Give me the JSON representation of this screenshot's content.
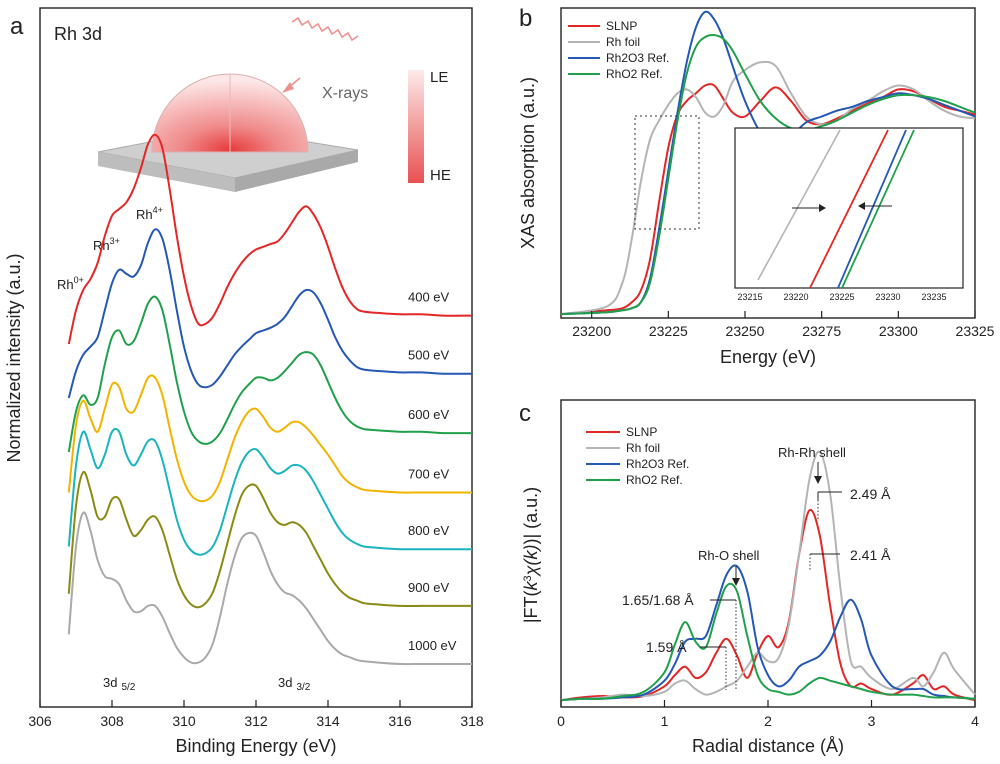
{
  "panels": {
    "a": {
      "letter": "a",
      "label": "Rh 3d",
      "inset": {
        "xray_label": "X-rays",
        "le_label": "LE",
        "he_label": "HE"
      },
      "peak_labels": {
        "rh0": "Rh",
        "rh0_sup": "0+",
        "rh3": "Rh",
        "rh3_sup": "3+",
        "rh4": "Rh",
        "rh4_sup": "4+"
      },
      "region_labels": {
        "d52": "3d",
        "d52_sub": "5/2",
        "d32": "3d",
        "d32_sub": "3/2"
      }
    },
    "b": {
      "letter": "b",
      "inset_ticks": [
        "23215",
        "23220",
        "23225",
        "23230",
        "23235"
      ]
    },
    "c": {
      "letter": "c",
      "annotations": {
        "rhrh_shell": "Rh-Rh shell",
        "rho_shell": "Rh-O shell",
        "v249": "2.49 Å",
        "v241": "2.41 Å",
        "v165": "1.65/1.68 Å",
        "v159": "1.59 Å"
      }
    }
  },
  "chart_data": [
    {
      "type": "line",
      "panel": "a",
      "title": "Rh 3d",
      "xlabel": "Binding Energy (eV)",
      "ylabel": "Normalized intensity (a.u.)",
      "xlim": [
        306,
        318
      ],
      "x_ticks": [
        306,
        308,
        310,
        312,
        314,
        316,
        318
      ],
      "x": [
        306.8,
        307.0,
        307.2,
        307.4,
        307.6,
        307.8,
        308.0,
        308.2,
        308.4,
        308.6,
        308.8,
        309.0,
        309.2,
        309.4,
        309.6,
        309.8,
        310.0,
        310.2,
        310.4,
        310.6,
        310.8,
        311.0,
        311.2,
        311.4,
        311.6,
        311.8,
        312.0,
        312.2,
        312.4,
        312.6,
        312.8,
        313.0,
        313.2,
        313.4,
        313.6,
        313.8,
        314.0,
        314.2,
        314.4,
        314.6,
        314.8,
        315.0,
        315.4,
        316.0,
        316.6,
        317.2,
        318.0
      ],
      "series": [
        {
          "name": "400 eV",
          "color": "#e32626",
          "offset": 6,
          "values": [
            0.0,
            0.25,
            0.4,
            0.48,
            0.6,
            0.8,
            0.95,
            1.0,
            1.05,
            1.15,
            1.3,
            1.48,
            1.55,
            1.45,
            1.15,
            0.8,
            0.5,
            0.28,
            0.15,
            0.15,
            0.2,
            0.3,
            0.42,
            0.52,
            0.6,
            0.66,
            0.7,
            0.72,
            0.74,
            0.76,
            0.82,
            0.9,
            0.98,
            1.02,
            0.96,
            0.86,
            0.72,
            0.56,
            0.42,
            0.32,
            0.26,
            0.24,
            0.23,
            0.22,
            0.22,
            0.21,
            0.21
          ]
        },
        {
          "name": "500 eV",
          "color": "#2458b4",
          "offset": 5,
          "values": [
            0.0,
            0.2,
            0.32,
            0.38,
            0.45,
            0.65,
            0.85,
            0.95,
            0.92,
            0.9,
            0.98,
            1.15,
            1.25,
            1.18,
            0.95,
            0.65,
            0.38,
            0.2,
            0.1,
            0.08,
            0.1,
            0.16,
            0.24,
            0.32,
            0.38,
            0.43,
            0.48,
            0.5,
            0.52,
            0.55,
            0.6,
            0.68,
            0.76,
            0.8,
            0.78,
            0.7,
            0.58,
            0.45,
            0.35,
            0.28,
            0.23,
            0.21,
            0.2,
            0.19,
            0.19,
            0.18,
            0.18
          ]
        },
        {
          "name": "600 eV",
          "color": "#20a04a",
          "offset": 4,
          "values": [
            0.0,
            0.3,
            0.42,
            0.35,
            0.4,
            0.65,
            0.85,
            0.9,
            0.8,
            0.82,
            0.95,
            1.1,
            1.15,
            1.05,
            0.8,
            0.52,
            0.3,
            0.15,
            0.08,
            0.06,
            0.08,
            0.14,
            0.24,
            0.35,
            0.44,
            0.5,
            0.55,
            0.55,
            0.53,
            0.55,
            0.6,
            0.66,
            0.72,
            0.74,
            0.72,
            0.64,
            0.52,
            0.4,
            0.3,
            0.23,
            0.19,
            0.17,
            0.16,
            0.15,
            0.15,
            0.14,
            0.14
          ]
        },
        {
          "name": "700 eV",
          "color": "#f0b400",
          "offset": 3,
          "values": [
            0.1,
            0.6,
            0.78,
            0.65,
            0.55,
            0.72,
            0.9,
            0.88,
            0.72,
            0.7,
            0.82,
            0.95,
            0.95,
            0.82,
            0.58,
            0.35,
            0.18,
            0.08,
            0.04,
            0.04,
            0.08,
            0.18,
            0.34,
            0.5,
            0.62,
            0.7,
            0.72,
            0.66,
            0.58,
            0.55,
            0.58,
            0.62,
            0.62,
            0.58,
            0.52,
            0.45,
            0.38,
            0.3,
            0.22,
            0.17,
            0.14,
            0.12,
            0.11,
            0.1,
            0.1,
            0.1,
            0.1
          ]
        },
        {
          "name": "800 eV",
          "color": "#1ab4be",
          "offset": 2,
          "values": [
            0.1,
            0.7,
            0.95,
            0.82,
            0.68,
            0.78,
            0.95,
            0.95,
            0.78,
            0.7,
            0.78,
            0.88,
            0.88,
            0.74,
            0.52,
            0.3,
            0.15,
            0.07,
            0.04,
            0.05,
            0.1,
            0.22,
            0.4,
            0.58,
            0.72,
            0.8,
            0.82,
            0.76,
            0.68,
            0.64,
            0.66,
            0.7,
            0.7,
            0.66,
            0.58,
            0.48,
            0.38,
            0.28,
            0.2,
            0.15,
            0.12,
            0.1,
            0.09,
            0.08,
            0.08,
            0.08,
            0.08
          ]
        },
        {
          "name": "900 eV",
          "color": "#8a8a14",
          "offset": 1,
          "values": [
            0.15,
            0.8,
            1.05,
            0.92,
            0.72,
            0.72,
            0.85,
            0.85,
            0.7,
            0.58,
            0.62,
            0.7,
            0.72,
            0.62,
            0.44,
            0.26,
            0.14,
            0.07,
            0.05,
            0.08,
            0.16,
            0.32,
            0.52,
            0.72,
            0.88,
            0.95,
            0.95,
            0.86,
            0.75,
            0.68,
            0.66,
            0.68,
            0.66,
            0.6,
            0.5,
            0.4,
            0.3,
            0.22,
            0.16,
            0.12,
            0.1,
            0.08,
            0.07,
            0.06,
            0.06,
            0.06,
            0.06
          ]
        },
        {
          "name": "1000 eV",
          "color": "#a9a9a9",
          "offset": 0,
          "values": [
            0.25,
            0.9,
            1.15,
            1.02,
            0.8,
            0.68,
            0.66,
            0.62,
            0.5,
            0.42,
            0.42,
            0.46,
            0.46,
            0.38,
            0.26,
            0.15,
            0.08,
            0.04,
            0.04,
            0.08,
            0.18,
            0.38,
            0.62,
            0.82,
            0.96,
            1.0,
            0.98,
            0.86,
            0.72,
            0.62,
            0.56,
            0.54,
            0.5,
            0.44,
            0.36,
            0.28,
            0.2,
            0.14,
            0.1,
            0.08,
            0.06,
            0.05,
            0.04,
            0.03,
            0.03,
            0.03,
            0.03
          ]
        }
      ]
    },
    {
      "type": "line",
      "panel": "b",
      "xlabel": "Energy (eV)",
      "ylabel": "XAS absorption (a.u.)",
      "xlim": [
        23190,
        23325
      ],
      "ylim": [
        0,
        1.6
      ],
      "x_ticks": [
        23200,
        23225,
        23250,
        23275,
        23300,
        23325
      ],
      "legend": "top-left",
      "x": [
        23190,
        23205,
        23210,
        23213,
        23216,
        23219,
        23222,
        23225,
        23228,
        23231,
        23234,
        23237,
        23240,
        23243,
        23246,
        23250,
        23255,
        23260,
        23265,
        23270,
        23275,
        23280,
        23285,
        23290,
        23295,
        23300,
        23305,
        23310,
        23315,
        23320,
        23325
      ],
      "series": [
        {
          "name": "SLNP",
          "color": "#e32626",
          "values": [
            0.02,
            0.04,
            0.05,
            0.08,
            0.14,
            0.3,
            0.6,
            0.88,
            1.05,
            1.12,
            1.16,
            1.2,
            1.2,
            1.13,
            1.06,
            1.04,
            1.12,
            1.19,
            1.12,
            1.02,
            1.0,
            1.03,
            1.07,
            1.11,
            1.14,
            1.18,
            1.17,
            1.13,
            1.09,
            1.07,
            1.05
          ]
        },
        {
          "name": "Rh foil",
          "color": "#b4b4b4",
          "values": [
            0.02,
            0.06,
            0.18,
            0.4,
            0.7,
            0.92,
            1.02,
            1.1,
            1.16,
            1.18,
            1.14,
            1.06,
            1.04,
            1.1,
            1.22,
            1.28,
            1.32,
            1.3,
            1.16,
            1.04,
            1.0,
            1.02,
            1.08,
            1.12,
            1.17,
            1.2,
            1.18,
            1.12,
            1.07,
            1.04,
            1.03
          ]
        },
        {
          "name": "Rh2O3 Ref.",
          "color": "#2458b4",
          "values": [
            0.02,
            0.03,
            0.04,
            0.05,
            0.08,
            0.2,
            0.46,
            0.76,
            1.06,
            1.32,
            1.5,
            1.58,
            1.54,
            1.44,
            1.3,
            1.12,
            0.96,
            0.9,
            0.94,
            1.01,
            1.04,
            1.07,
            1.09,
            1.12,
            1.14,
            1.16,
            1.15,
            1.13,
            1.1,
            1.07,
            1.04
          ]
        },
        {
          "name": "RhO2 Ref.",
          "color": "#20a04a",
          "values": [
            0.02,
            0.03,
            0.04,
            0.05,
            0.08,
            0.18,
            0.42,
            0.72,
            1.02,
            1.26,
            1.4,
            1.45,
            1.46,
            1.44,
            1.38,
            1.26,
            1.12,
            1.03,
            0.98,
            0.97,
            0.99,
            1.02,
            1.06,
            1.1,
            1.13,
            1.15,
            1.15,
            1.14,
            1.12,
            1.09,
            1.06
          ]
        }
      ]
    },
    {
      "type": "line",
      "panel": "c",
      "xlabel": "Radial distance (Å)",
      "ylabel": "|FT(k³χ(k))| (a.u.)",
      "xlim": [
        0,
        4
      ],
      "ylim": [
        0,
        2.2
      ],
      "x_ticks": [
        0,
        1,
        2,
        3,
        4
      ],
      "legend": "top-left",
      "x": [
        0.0,
        0.2,
        0.4,
        0.6,
        0.8,
        1.0,
        1.1,
        1.2,
        1.3,
        1.4,
        1.5,
        1.6,
        1.7,
        1.8,
        1.9,
        2.0,
        2.1,
        2.2,
        2.3,
        2.4,
        2.5,
        2.6,
        2.7,
        2.8,
        2.9,
        3.0,
        3.2,
        3.4,
        3.5,
        3.6,
        3.7,
        3.8,
        4.0
      ],
      "series": [
        {
          "name": "SLNP",
          "color": "#e32626",
          "values": [
            0.02,
            0.04,
            0.05,
            0.04,
            0.05,
            0.12,
            0.2,
            0.26,
            0.18,
            0.22,
            0.36,
            0.46,
            0.34,
            0.18,
            0.36,
            0.48,
            0.4,
            0.58,
            1.06,
            1.38,
            1.2,
            0.7,
            0.28,
            0.12,
            0.14,
            0.1,
            0.06,
            0.14,
            0.2,
            0.1,
            0.12,
            0.06,
            0.02
          ]
        },
        {
          "name": "Rh foil",
          "color": "#b4b4b4",
          "values": [
            0.02,
            0.03,
            0.04,
            0.06,
            0.05,
            0.08,
            0.14,
            0.16,
            0.1,
            0.06,
            0.08,
            0.12,
            0.16,
            0.26,
            0.36,
            0.3,
            0.32,
            0.56,
            1.06,
            1.6,
            1.8,
            1.5,
            0.82,
            0.3,
            0.26,
            0.18,
            0.1,
            0.18,
            0.12,
            0.22,
            0.36,
            0.24,
            0.06
          ]
        },
        {
          "name": "Rh2O3 Ref.",
          "color": "#2458b4",
          "values": [
            0.02,
            0.03,
            0.03,
            0.04,
            0.06,
            0.16,
            0.28,
            0.44,
            0.46,
            0.48,
            0.7,
            0.92,
            0.98,
            0.8,
            0.4,
            0.2,
            0.12,
            0.16,
            0.26,
            0.3,
            0.34,
            0.44,
            0.62,
            0.74,
            0.6,
            0.34,
            0.12,
            0.1,
            0.1,
            0.06,
            0.05,
            0.04,
            0.03
          ]
        },
        {
          "name": "RhO2 Ref.",
          "color": "#20a04a",
          "values": [
            0.02,
            0.03,
            0.03,
            0.05,
            0.08,
            0.22,
            0.42,
            0.58,
            0.44,
            0.4,
            0.64,
            0.84,
            0.8,
            0.48,
            0.2,
            0.1,
            0.08,
            0.06,
            0.08,
            0.14,
            0.18,
            0.16,
            0.14,
            0.12,
            0.1,
            0.08,
            0.06,
            0.06,
            0.05,
            0.04,
            0.04,
            0.04,
            0.03
          ]
        }
      ]
    }
  ]
}
